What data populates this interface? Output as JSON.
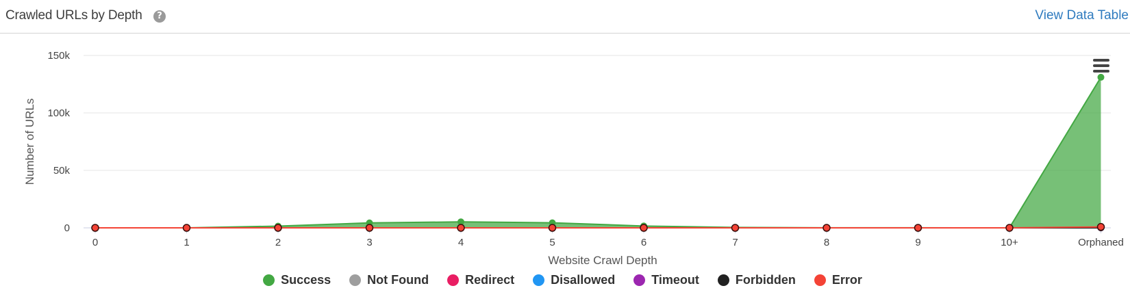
{
  "header": {
    "title": "Crawled URLs by Depth",
    "help_icon": "question-circle-icon",
    "view_data_table": "View Data Table"
  },
  "chart_menu_icon": "hamburger-menu-icon",
  "chart_data": {
    "type": "area",
    "title": "",
    "xlabel": "Website Crawl Depth",
    "ylabel": "Number of URLs",
    "categories": [
      "0",
      "1",
      "2",
      "3",
      "4",
      "5",
      "6",
      "7",
      "8",
      "9",
      "10+",
      "Orphaned"
    ],
    "ylim": [
      0,
      150000
    ],
    "yticks": [
      0,
      50000,
      100000,
      150000
    ],
    "ytick_labels": [
      "0",
      "50k",
      "100k",
      "150k"
    ],
    "grid": true,
    "legend_position": "bottom",
    "series": [
      {
        "name": "Success",
        "color": "#43a843",
        "values": [
          1,
          20,
          1500,
          4300,
          5200,
          4400,
          1600,
          350,
          90,
          40,
          30,
          131000
        ]
      },
      {
        "name": "Not Found",
        "color": "#9e9e9e",
        "values": [
          0,
          0,
          0,
          0,
          0,
          0,
          0,
          0,
          0,
          0,
          0,
          0
        ]
      },
      {
        "name": "Redirect",
        "color": "#e91e63",
        "values": [
          0,
          0,
          0,
          0,
          0,
          0,
          0,
          0,
          0,
          0,
          0,
          0
        ]
      },
      {
        "name": "Disallowed",
        "color": "#2196f3",
        "values": [
          0,
          0,
          0,
          0,
          0,
          0,
          0,
          0,
          0,
          0,
          0,
          0
        ]
      },
      {
        "name": "Timeout",
        "color": "#9c27b0",
        "values": [
          0,
          0,
          0,
          0,
          0,
          0,
          0,
          0,
          0,
          0,
          0,
          0
        ]
      },
      {
        "name": "Forbidden",
        "color": "#212121",
        "values": [
          0,
          0,
          0,
          0,
          0,
          0,
          0,
          0,
          0,
          0,
          0,
          0
        ]
      },
      {
        "name": "Error",
        "color": "#f44336",
        "values": [
          0,
          0,
          0,
          0,
          0,
          0,
          0,
          0,
          0,
          0,
          0,
          800
        ]
      }
    ]
  }
}
